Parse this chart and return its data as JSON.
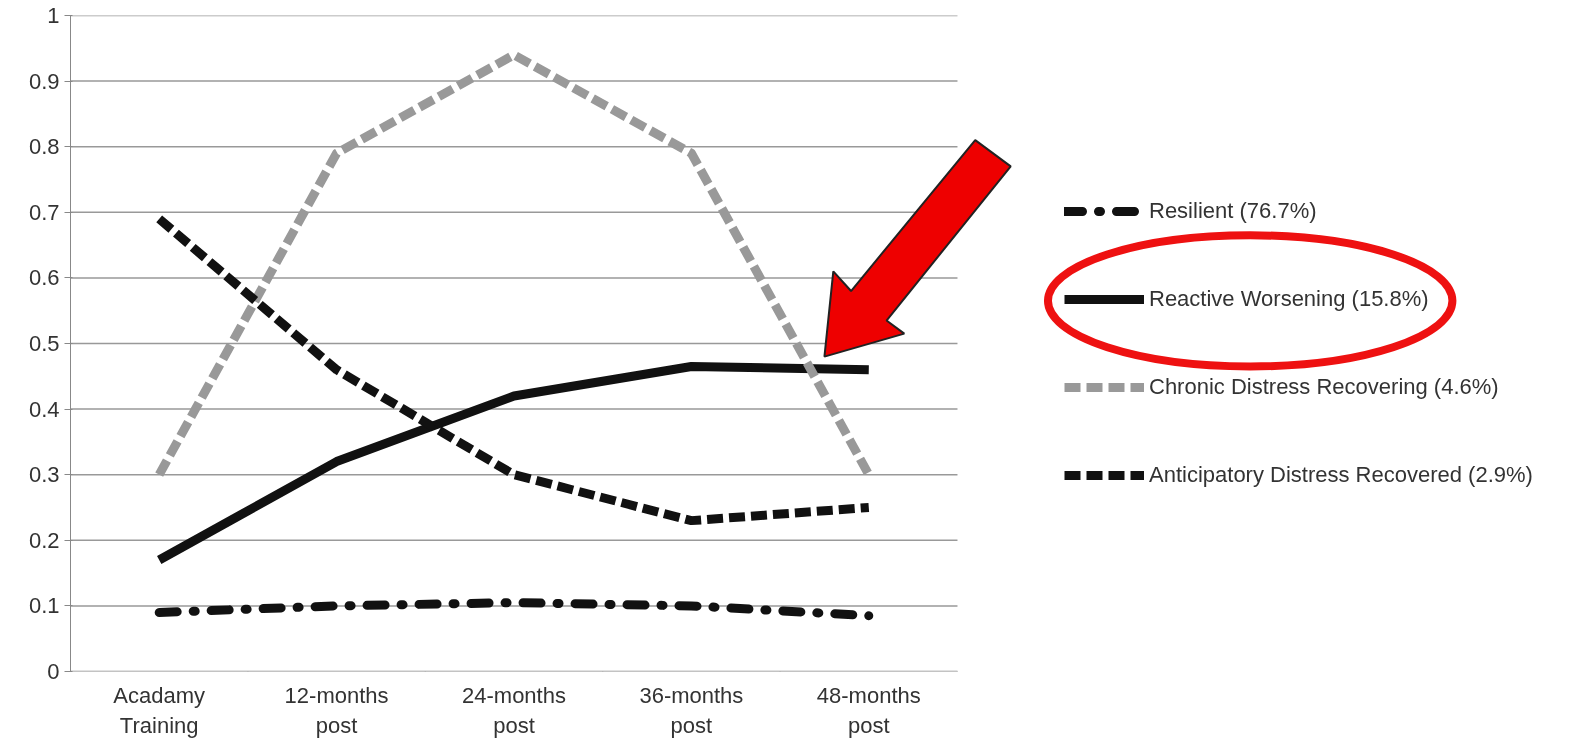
{
  "chart_data": {
    "type": "line",
    "categories": [
      "Acadamy Training",
      "12-months post",
      "24-months post",
      "36-months post",
      "48-months post"
    ],
    "series": [
      {
        "name": "Resilient (76.7%)",
        "color": "#111111",
        "line_style": "dashdot",
        "values": [
          0.09,
          0.1,
          0.105,
          0.1,
          0.085
        ]
      },
      {
        "name": "Reactive Worsening (15.8%)",
        "color": "#111111",
        "line_style": "solid",
        "values": [
          0.17,
          0.32,
          0.42,
          0.465,
          0.46
        ]
      },
      {
        "name": "Chronic Distress Recovering (4.6%)",
        "color": "#999999",
        "line_style": "dashed",
        "values": [
          0.3,
          0.79,
          0.94,
          0.79,
          0.3
        ]
      },
      {
        "name": "Anticipatory Distress Recovered (2.9%)",
        "color": "#111111",
        "line_style": "dashed",
        "values": [
          0.69,
          0.46,
          0.3,
          0.23,
          0.25
        ]
      }
    ],
    "ylim": [
      0,
      1
    ],
    "yticks": [
      0,
      0.1,
      0.2,
      0.3,
      0.4,
      0.5,
      0.6,
      0.7,
      0.8,
      0.9,
      1
    ],
    "grid": "y",
    "legend": "right",
    "marker": "none"
  }
}
